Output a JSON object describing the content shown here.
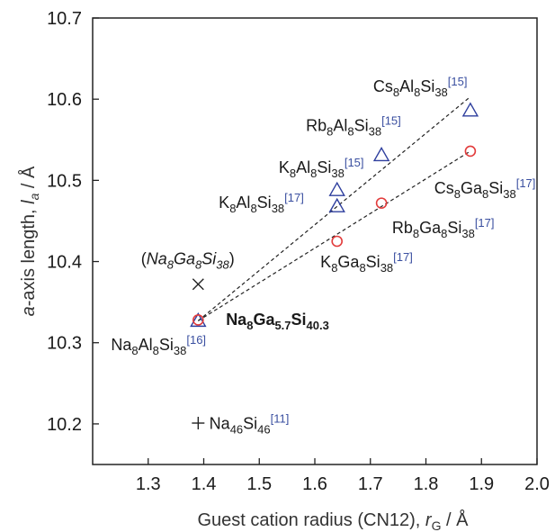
{
  "chart_data": {
    "type": "scatter",
    "xlabel": {
      "text": "Guest cation radius (CN12), ",
      "var": "r",
      "sub": "G",
      "unit": " / Å"
    },
    "ylabel": {
      "prefix": "a",
      "text": "-axis length, ",
      "var": "l",
      "sub": "a",
      "unit": " / Å"
    },
    "xlim": [
      1.2,
      2.0
    ],
    "ylim": [
      10.15,
      10.7
    ],
    "x_ticks": [
      "1.3",
      "1.4",
      "1.5",
      "1.6",
      "1.7",
      "1.8",
      "1.9",
      "2.0"
    ],
    "y_ticks": [
      "10.2",
      "10.3",
      "10.4",
      "10.5",
      "10.6",
      "10.7"
    ],
    "series": [
      {
        "marker": "triangle",
        "color": "#2f3f9e",
        "points": [
          {
            "x": 1.39,
            "y": 10.327
          },
          {
            "x": 1.64,
            "y": 10.468
          },
          {
            "x": 1.64,
            "y": 10.488
          },
          {
            "x": 1.72,
            "y": 10.531
          },
          {
            "x": 1.88,
            "y": 10.586
          }
        ]
      },
      {
        "marker": "circle",
        "color": "#e23b3b",
        "points": [
          {
            "x": 1.39,
            "y": 10.328
          },
          {
            "x": 1.64,
            "y": 10.425
          },
          {
            "x": 1.72,
            "y": 10.472
          },
          {
            "x": 1.88,
            "y": 10.536
          }
        ]
      },
      {
        "marker": "cross",
        "color": "#222222",
        "points": [
          {
            "x": 1.39,
            "y": 10.372
          }
        ]
      },
      {
        "marker": "plus",
        "color": "#222222",
        "points": [
          {
            "x": 1.39,
            "y": 10.201
          }
        ]
      }
    ],
    "fit_lines": [
      {
        "x": [
          1.39,
          1.88
        ],
        "y": [
          10.327,
          10.603
        ],
        "style": "dashed"
      },
      {
        "x": [
          1.39,
          1.88
        ],
        "y": [
          10.327,
          10.536
        ],
        "style": "dashed"
      }
    ],
    "annotations": [
      {
        "parts": [
          {
            "t": "Cs"
          },
          {
            "t": "8",
            "s": 1
          },
          {
            "t": "Al"
          },
          {
            "t": "8",
            "s": 1
          },
          {
            "t": "Si"
          },
          {
            "t": "38",
            "s": 1
          },
          {
            "t": "[15]",
            "r": 1
          }
        ],
        "x": 1.705,
        "y": 10.609
      },
      {
        "parts": [
          {
            "t": "Rb"
          },
          {
            "t": "8",
            "s": 1
          },
          {
            "t": "Al"
          },
          {
            "t": "8",
            "s": 1
          },
          {
            "t": "Si"
          },
          {
            "t": "38",
            "s": 1
          },
          {
            "t": "[15]",
            "r": 1
          }
        ],
        "x": 1.584,
        "y": 10.561
      },
      {
        "parts": [
          {
            "t": "K"
          },
          {
            "t": "8",
            "s": 1
          },
          {
            "t": "Al"
          },
          {
            "t": "8",
            "s": 1
          },
          {
            "t": "Si"
          },
          {
            "t": "38",
            "s": 1
          },
          {
            "t": "[15]",
            "r": 1
          }
        ],
        "x": 1.535,
        "y": 10.509
      },
      {
        "parts": [
          {
            "t": "K"
          },
          {
            "t": "8",
            "s": 1
          },
          {
            "t": "Al"
          },
          {
            "t": "8",
            "s": 1
          },
          {
            "t": "Si"
          },
          {
            "t": "38",
            "s": 1
          },
          {
            "t": "[17]",
            "r": 1
          }
        ],
        "x": 1.427,
        "y": 10.466
      },
      {
        "parts": [
          {
            "t": "Cs"
          },
          {
            "t": "8",
            "s": 1
          },
          {
            "t": "Ga"
          },
          {
            "t": "8",
            "s": 1
          },
          {
            "t": "Si"
          },
          {
            "t": "38",
            "s": 1
          },
          {
            "t": "[17]",
            "r": 1
          }
        ],
        "x": 1.815,
        "y": 10.484
      },
      {
        "parts": [
          {
            "t": "Rb"
          },
          {
            "t": "8",
            "s": 1
          },
          {
            "t": "Ga"
          },
          {
            "t": "8",
            "s": 1
          },
          {
            "t": "Si"
          },
          {
            "t": "38",
            "s": 1
          },
          {
            "t": "[17]",
            "r": 1
          }
        ],
        "x": 1.739,
        "y": 10.435
      },
      {
        "parts": [
          {
            "t": "K"
          },
          {
            "t": "8",
            "s": 1
          },
          {
            "t": "Ga"
          },
          {
            "t": "8",
            "s": 1
          },
          {
            "t": "Si"
          },
          {
            "t": "38",
            "s": 1
          },
          {
            "t": "[17]",
            "r": 1
          }
        ],
        "x": 1.61,
        "y": 10.393
      },
      {
        "parts": [
          {
            "t": "("
          },
          {
            "t": "Na",
            "i": 1
          },
          {
            "t": "8",
            "s": 1,
            "i": 1
          },
          {
            "t": "Ga",
            "i": 1
          },
          {
            "t": "8",
            "s": 1,
            "i": 1
          },
          {
            "t": "Si",
            "i": 1
          },
          {
            "t": "38",
            "s": 1,
            "i": 1
          },
          {
            "t": ")"
          }
        ],
        "x": 1.287,
        "y": 10.397
      },
      {
        "parts": [
          {
            "t": "Na",
            "b": 1
          },
          {
            "t": "8",
            "s": 1,
            "b": 1
          },
          {
            "t": "Ga",
            "b": 1
          },
          {
            "t": "5.7",
            "s": 1,
            "b": 1
          },
          {
            "t": "Si",
            "b": 1
          },
          {
            "t": "40.3",
            "s": 1,
            "b": 1
          }
        ],
        "x": 1.44,
        "y": 10.322
      },
      {
        "parts": [
          {
            "t": "Na"
          },
          {
            "t": "8",
            "s": 1
          },
          {
            "t": "Al"
          },
          {
            "t": "8",
            "s": 1
          },
          {
            "t": "Si"
          },
          {
            "t": "38",
            "s": 1
          },
          {
            "t": "[16]",
            "r": 1
          }
        ],
        "x": 1.233,
        "y": 10.291
      },
      {
        "parts": [
          {
            "t": "Na"
          },
          {
            "t": "46",
            "s": 1
          },
          {
            "t": "Si"
          },
          {
            "t": "46",
            "s": 1
          },
          {
            "t": "[11]",
            "r": 1
          }
        ],
        "x": 1.41,
        "y": 10.194
      }
    ]
  }
}
